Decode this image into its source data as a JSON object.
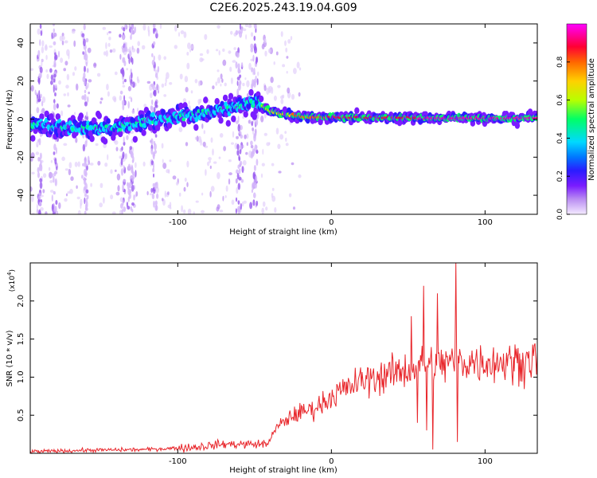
{
  "title": "C2E6.2025.243.19.04.G09",
  "chart_data": [
    {
      "type": "heatmap",
      "id": "spectrogram",
      "xlabel": "Height of straight line (km)",
      "ylabel": "Frequency (Hz)",
      "xlim": [
        -196,
        134
      ],
      "ylim": [
        -50,
        50
      ],
      "xticks": [
        -100,
        0,
        100
      ],
      "yticks": [
        -40,
        -20,
        0,
        20,
        40
      ],
      "colorbar": {
        "label": "Normalized spectral amplitude",
        "range": [
          0.0,
          1.0
        ],
        "ticks": [
          0.0,
          0.2,
          0.4,
          0.6,
          0.8
        ],
        "colormap": [
          "#f2e6ff",
          "#b98cf2",
          "#7a1cff",
          "#2a1cff",
          "#0077ff",
          "#00d9ff",
          "#00ff66",
          "#b8ff00",
          "#ffd000",
          "#ff6600",
          "#ff0033",
          "#ff00aa",
          "#ff00ff"
        ]
      },
      "ridge": {
        "x": [
          -196,
          -180,
          -165,
          -150,
          -140,
          -125,
          -110,
          -95,
          -85,
          -75,
          -65,
          -55,
          -48,
          -42,
          -35,
          -25,
          -15,
          -5,
          0,
          10,
          20,
          40,
          60,
          80,
          100,
          120,
          134
        ],
        "y": [
          -3,
          -4,
          -5,
          -5,
          -4,
          -2,
          0,
          2,
          3,
          4,
          6,
          8,
          9,
          5,
          3,
          2,
          1,
          1,
          1,
          1,
          0.8,
          0.8,
          0.6,
          0.6,
          0.5,
          0.5,
          0.5
        ],
        "amplitude": [
          0.35,
          0.38,
          0.4,
          0.38,
          0.36,
          0.38,
          0.4,
          0.42,
          0.45,
          0.46,
          0.48,
          0.5,
          0.55,
          0.65,
          0.7,
          0.75,
          0.8,
          0.82,
          0.84,
          0.86,
          0.88,
          0.9,
          0.92,
          0.95,
          0.95,
          0.96,
          0.96
        ]
      },
      "noise_columns_x": [
        -190,
        -180,
        -160,
        -135,
        -130,
        -115,
        -60,
        -50
      ]
    },
    {
      "type": "line",
      "id": "snr",
      "xlabel": "Height of straight line (km)",
      "ylabel": "SNR (10 * v/v)",
      "yscale_label": "(x10",
      "yscale_exp": "4",
      "xlim": [
        -196,
        134
      ],
      "ylim": [
        0,
        2.5
      ],
      "xticks": [
        -100,
        0,
        100
      ],
      "yticks": [
        0.5,
        1.0,
        1.5,
        2.0
      ],
      "ytick_labels": [
        "0.5",
        "1.0",
        "1.5",
        "2.0"
      ],
      "color": "#e8262b",
      "trend": {
        "x": [
          -196,
          -160,
          -120,
          -90,
          -70,
          -50,
          -42,
          -35,
          -25,
          -10,
          0,
          10,
          20,
          40,
          60,
          80,
          100,
          120,
          134
        ],
        "y": [
          0.02,
          0.04,
          0.05,
          0.08,
          0.12,
          0.12,
          0.12,
          0.35,
          0.5,
          0.6,
          0.75,
          0.85,
          0.95,
          1.05,
          1.15,
          1.2,
          1.2,
          1.2,
          1.25
        ]
      },
      "spikes": [
        {
          "x": 60,
          "y": 2.2
        },
        {
          "x": 66,
          "y": 0.05
        },
        {
          "x": 69,
          "y": 2.1
        },
        {
          "x": 81,
          "y": 2.5
        },
        {
          "x": 82,
          "y": 0.15
        },
        {
          "x": 52,
          "y": 1.8
        },
        {
          "x": 62,
          "y": 0.3
        },
        {
          "x": 56,
          "y": 0.4
        }
      ]
    }
  ],
  "tick_labels": {
    "x": [
      "-100",
      "0",
      "100"
    ],
    "spec_y": [
      "40",
      "20",
      "0",
      "-20",
      "-40"
    ],
    "colorbar": [
      "0.0",
      "0.2",
      "0.4",
      "0.6",
      "0.8"
    ]
  }
}
